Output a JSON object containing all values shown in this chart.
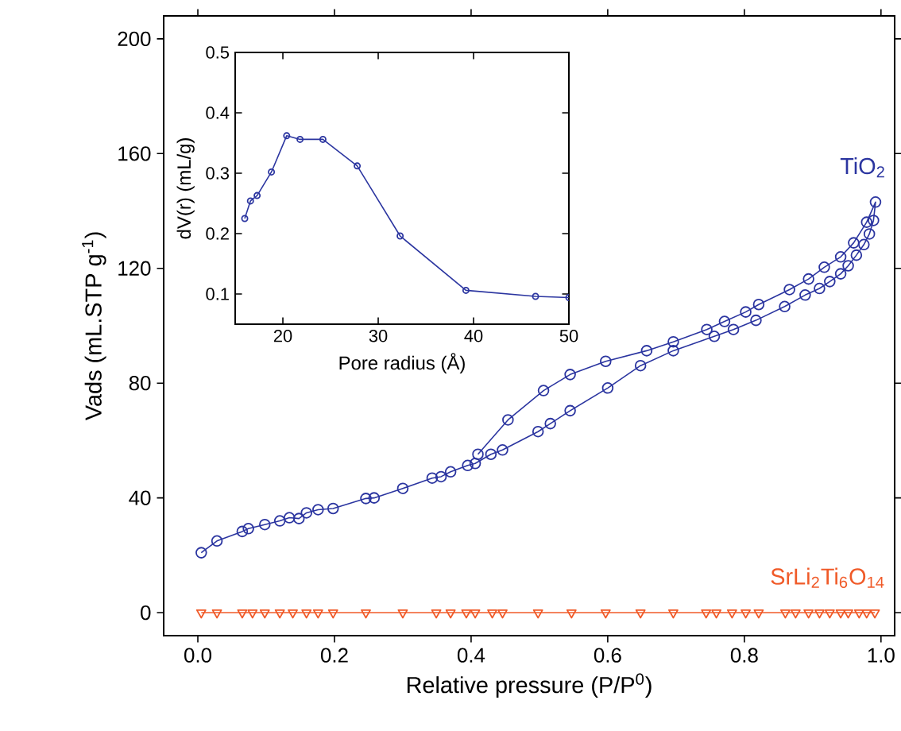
{
  "chart_data": [
    {
      "type": "line",
      "xlabel": "Relative pressure (P/P$^{0}$)",
      "ylabel": "Vads (mL.STP g$^{-1}$)",
      "xlim": [
        -0.05,
        1.02
      ],
      "ylim": [
        -8,
        208
      ],
      "xticks": [
        {
          "value": 0,
          "label": "0.0"
        },
        0.2,
        0.4,
        0.6,
        0.8,
        {
          "value": 1,
          "label": "1.0"
        }
      ],
      "yticks": [
        0,
        40,
        80,
        120,
        160,
        200
      ],
      "legend": false,
      "series": [
        {
          "name": "TiO$_{2}$",
          "color": "#2b35a0",
          "marker": "circle",
          "x": [
            0.005,
            0.028,
            0.065,
            0.074,
            0.098,
            0.12,
            0.134,
            0.148,
            0.159,
            0.176,
            0.198,
            0.246,
            0.258,
            0.3,
            0.343,
            0.356,
            0.37,
            0.395,
            0.406,
            0.429,
            0.446,
            0.498,
            0.516,
            0.545,
            0.6,
            0.648,
            0.696,
            0.756,
            0.784,
            0.817,
            0.859,
            0.889,
            0.91,
            0.925,
            0.941,
            0.952,
            0.964,
            0.975,
            0.983,
            0.989,
            0.992,
            0.979,
            0.96,
            0.941,
            0.917,
            0.894,
            0.866,
            0.821,
            0.802,
            0.771,
            0.745,
            0.696,
            0.657,
            0.597,
            0.545,
            0.506,
            0.454,
            0.41
          ],
          "values": [
            20.9,
            25,
            28.3,
            29.3,
            30.7,
            32,
            33.1,
            32.8,
            34.8,
            35.9,
            36.3,
            39.8,
            40,
            43.3,
            46.9,
            47.4,
            49.1,
            51.3,
            52,
            55.2,
            56.7,
            63.1,
            65.9,
            70.4,
            78.3,
            86.1,
            91.3,
            96.3,
            98.7,
            101.9,
            106.7,
            110.7,
            113,
            115.4,
            118.1,
            120.9,
            124.6,
            128.3,
            132,
            136.7,
            143.1,
            136.1,
            128.9,
            124,
            120.4,
            116.3,
            112.6,
            107.4,
            104.8,
            101.5,
            98.7,
            94.4,
            91.3,
            87.6,
            83,
            77.4,
            67.2,
            55.2
          ]
        },
        {
          "name": "SrLi$_{2}$Ti$_{6}$O$_{14}$",
          "color": "#f05a28",
          "marker": "triangle",
          "x": [
            0.005,
            0.028,
            0.065,
            0.08,
            0.098,
            0.12,
            0.139,
            0.159,
            0.176,
            0.198,
            0.246,
            0.3,
            0.349,
            0.37,
            0.393,
            0.406,
            0.431,
            0.446,
            0.498,
            0.547,
            0.597,
            0.648,
            0.696,
            0.744,
            0.759,
            0.782,
            0.802,
            0.821,
            0.86,
            0.875,
            0.894,
            0.91,
            0.925,
            0.941,
            0.952,
            0.968,
            0.979,
            0.991
          ],
          "values": [
            0,
            0,
            0,
            0,
            0,
            0,
            0,
            0,
            0,
            0,
            0,
            0,
            0,
            0,
            0,
            0,
            0,
            0,
            0,
            0,
            0,
            0,
            0,
            0,
            0,
            0,
            0,
            0,
            0,
            0,
            0,
            0,
            0,
            0,
            0,
            0,
            0,
            0
          ]
        }
      ]
    },
    {
      "type": "line",
      "xlabel": "Pore radius (Å)",
      "ylabel": "dV(r) (mL/g)",
      "xlim": [
        15,
        50
      ],
      "ylim": [
        0.05,
        0.5
      ],
      "xticks": [
        20,
        30,
        40,
        50
      ],
      "yticks": [
        0.1,
        0.2,
        0.3,
        0.4,
        0.5
      ],
      "legend": false,
      "marker": "circle",
      "series": [
        {
          "color": "#2b35a0",
          "x": [
            16.0,
            16.6,
            17.3,
            18.8,
            20.4,
            21.8,
            24.2,
            27.8,
            32.3,
            39.2,
            46.5,
            50
          ],
          "values": [
            0.225,
            0.254,
            0.263,
            0.302,
            0.362,
            0.356,
            0.356,
            0.312,
            0.196,
            0.106,
            0.096,
            0.094
          ]
        }
      ]
    }
  ]
}
